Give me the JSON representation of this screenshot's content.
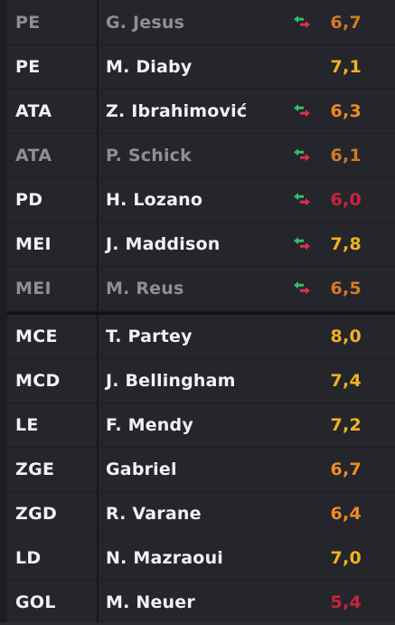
{
  "colors": {
    "rating_orange": "#f08a24",
    "rating_yellow": "#f2b21c",
    "rating_red": "#c8243c",
    "swap_up_green": "#2fbf6a",
    "swap_down_red": "#d6334a"
  },
  "substitutes": [
    {
      "position": "PE",
      "name": "G. Jesus",
      "rating": "6,7",
      "rating_tone": "orange",
      "swap_icon": true,
      "dimmed": true
    },
    {
      "position": "PE",
      "name": "M. Diaby",
      "rating": "7,1",
      "rating_tone": "yellow",
      "swap_icon": false,
      "dimmed": false
    },
    {
      "position": "ATA",
      "name": "Z. Ibrahimović",
      "rating": "6,3",
      "rating_tone": "orange",
      "swap_icon": true,
      "dimmed": false
    },
    {
      "position": "ATA",
      "name": "P. Schick",
      "rating": "6,1",
      "rating_tone": "orange",
      "swap_icon": true,
      "dimmed": true
    },
    {
      "position": "PD",
      "name": "H. Lozano",
      "rating": "6,0",
      "rating_tone": "red",
      "swap_icon": true,
      "dimmed": false
    },
    {
      "position": "MEI",
      "name": "J. Maddison",
      "rating": "7,8",
      "rating_tone": "yellow",
      "swap_icon": true,
      "dimmed": false
    },
    {
      "position": "MEI",
      "name": "M. Reus",
      "rating": "6,5",
      "rating_tone": "orange",
      "swap_icon": true,
      "dimmed": true
    }
  ],
  "starters": [
    {
      "position": "MCE",
      "name": "T. Partey",
      "rating": "8,0",
      "rating_tone": "yellow",
      "swap_icon": false,
      "dimmed": false
    },
    {
      "position": "MCD",
      "name": "J. Bellingham",
      "rating": "7,4",
      "rating_tone": "yellow",
      "swap_icon": false,
      "dimmed": false
    },
    {
      "position": "LE",
      "name": "F. Mendy",
      "rating": "7,2",
      "rating_tone": "yellow",
      "swap_icon": false,
      "dimmed": false
    },
    {
      "position": "ZGE",
      "name": "Gabriel",
      "rating": "6,7",
      "rating_tone": "orange",
      "swap_icon": false,
      "dimmed": false
    },
    {
      "position": "ZGD",
      "name": "R. Varane",
      "rating": "6,4",
      "rating_tone": "orange",
      "swap_icon": false,
      "dimmed": false
    },
    {
      "position": "LD",
      "name": "N. Mazraoui",
      "rating": "7,0",
      "rating_tone": "yellow",
      "swap_icon": false,
      "dimmed": false
    },
    {
      "position": "GOL",
      "name": "M. Neuer",
      "rating": "5,4",
      "rating_tone": "red",
      "swap_icon": false,
      "dimmed": false
    }
  ]
}
